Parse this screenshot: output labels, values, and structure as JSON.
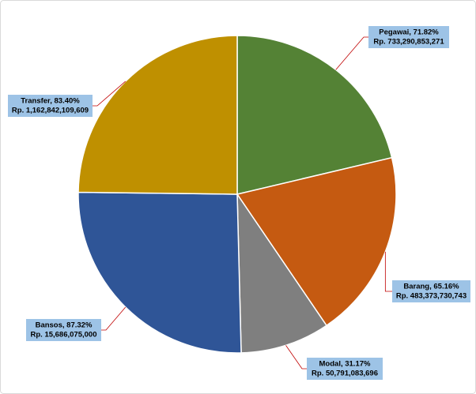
{
  "chart_data": {
    "type": "pie",
    "categories": [
      "Pegawai, 71.82%",
      "Barang, 65.16%",
      "Modal, 31.17%",
      "Bansos, 87.32%",
      "Transfer, 83.40%"
    ],
    "annotations": [
      "Rp. 733,290,853,271",
      "Rp. 483,373,730,743",
      "Rp. 50,791,083,696",
      "Rp. 15,686,075,000",
      "Rp. 1,162,842,109,609"
    ],
    "values": [
      21.3,
      19.2,
      9.1,
      25.6,
      24.8
    ],
    "colors": [
      "#548235",
      "#c55a11",
      "#7f7f7f",
      "#2f5597",
      "#bf9000"
    ]
  }
}
